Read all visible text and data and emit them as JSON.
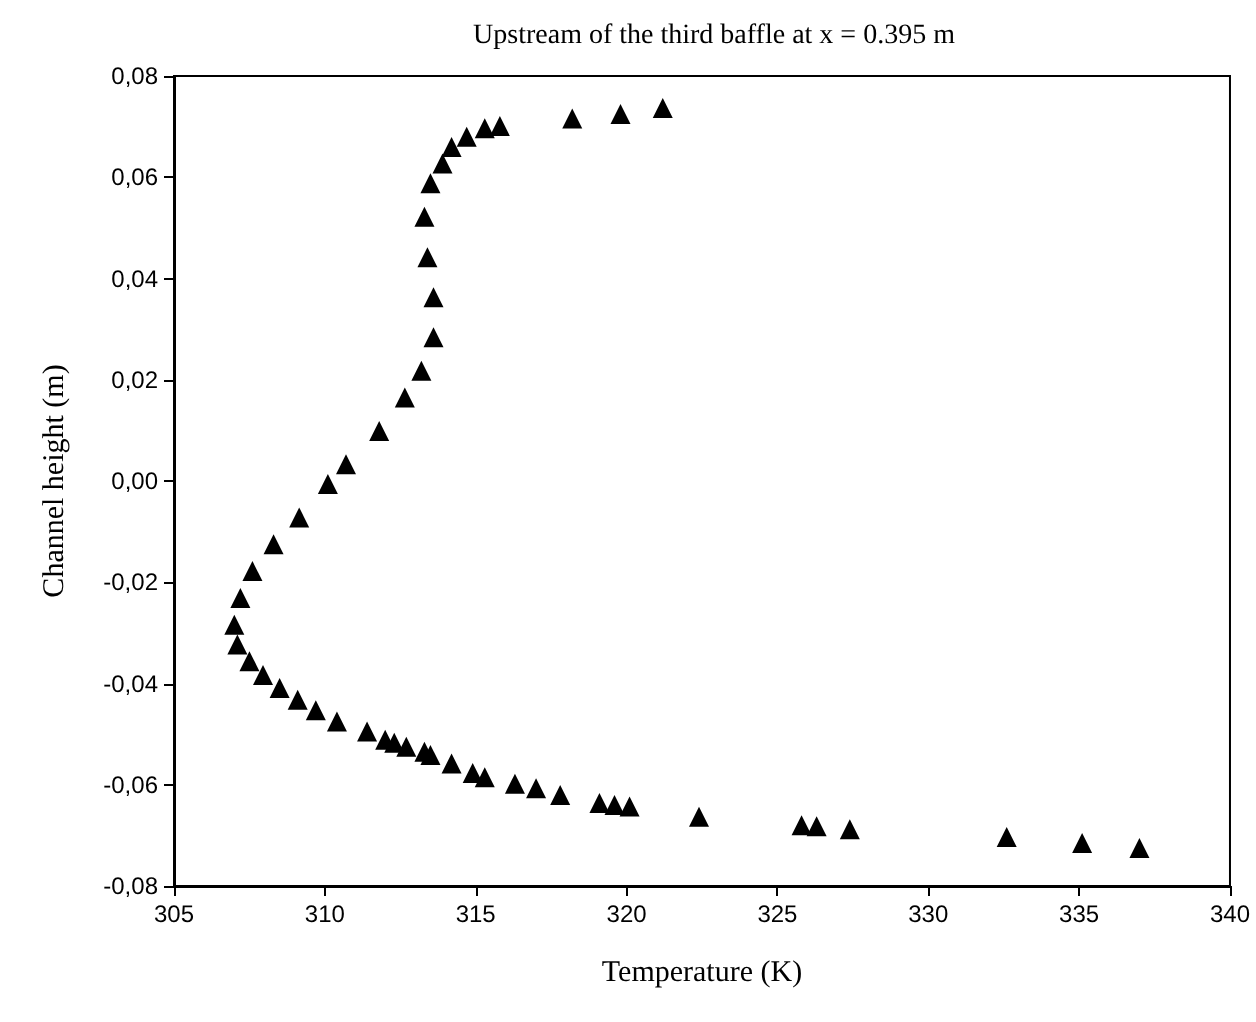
{
  "chart_data": {
    "type": "scatter",
    "title": "Upstream of the third baffle at x = 0.395 m",
    "xlabel": "Temperature (K)",
    "ylabel": "Channel height (m)",
    "marker": "triangle",
    "grid": false,
    "xlim": [
      305,
      340
    ],
    "xticks": [
      305,
      310,
      315,
      320,
      325,
      330,
      335,
      340
    ],
    "ylim": [
      -0.08,
      0.08
    ],
    "yticks": [
      {
        "value": -0.08,
        "label": "-0,08"
      },
      {
        "value": -0.06,
        "label": "-0,06"
      },
      {
        "value": -0.04,
        "label": "-0,04"
      },
      {
        "value": -0.02,
        "label": "-0,02"
      },
      {
        "value": 0,
        "label": "0,00"
      },
      {
        "value": 0.02,
        "label": "0,02"
      },
      {
        "value": 0.04,
        "label": "0,04"
      },
      {
        "value": 0.06,
        "label": "0,06"
      },
      {
        "value": 0.08,
        "label": "0,08"
      }
    ],
    "series": [
      {
        "color": "#000000",
        "x": [
          321.2,
          319.8,
          318.2,
          315.8,
          315.3,
          314.7,
          314.2,
          313.9,
          313.5,
          313.3,
          313.4,
          313.6,
          313.6,
          313.2,
          312.65,
          311.8,
          310.7,
          310.1,
          309.15,
          308.3,
          307.6,
          307.2,
          307.0,
          307.1,
          307.5,
          307.95,
          308.5,
          309.1,
          309.7,
          310.4,
          311.4,
          312.0,
          312.3,
          312.7,
          313.3,
          313.5,
          314.2,
          314.9,
          315.3,
          316.3,
          317.0,
          317.8,
          319.1,
          319.6,
          320.1,
          322.4,
          325.8,
          326.3,
          327.4,
          332.6,
          335.1,
          337.0
        ],
        "values": [
          0.0737,
          0.0725,
          0.0716,
          0.0701,
          0.0697,
          0.068,
          0.066,
          0.0627,
          0.0588,
          0.0522,
          0.0442,
          0.0363,
          0.0284,
          0.0218,
          0.0165,
          0.0099,
          0.0033,
          -0.0006,
          -0.0072,
          -0.0125,
          -0.0178,
          -0.0231,
          -0.0284,
          -0.0323,
          -0.0356,
          -0.0383,
          -0.0409,
          -0.0432,
          -0.0453,
          -0.0475,
          -0.0495,
          -0.0511,
          -0.0517,
          -0.0525,
          -0.0535,
          -0.0541,
          -0.0558,
          -0.0577,
          -0.0585,
          -0.0598,
          -0.0607,
          -0.062,
          -0.0636,
          -0.064,
          -0.0643,
          -0.0663,
          -0.068,
          -0.0682,
          -0.0688,
          -0.0703,
          -0.0715,
          -0.0725
        ]
      }
    ]
  }
}
